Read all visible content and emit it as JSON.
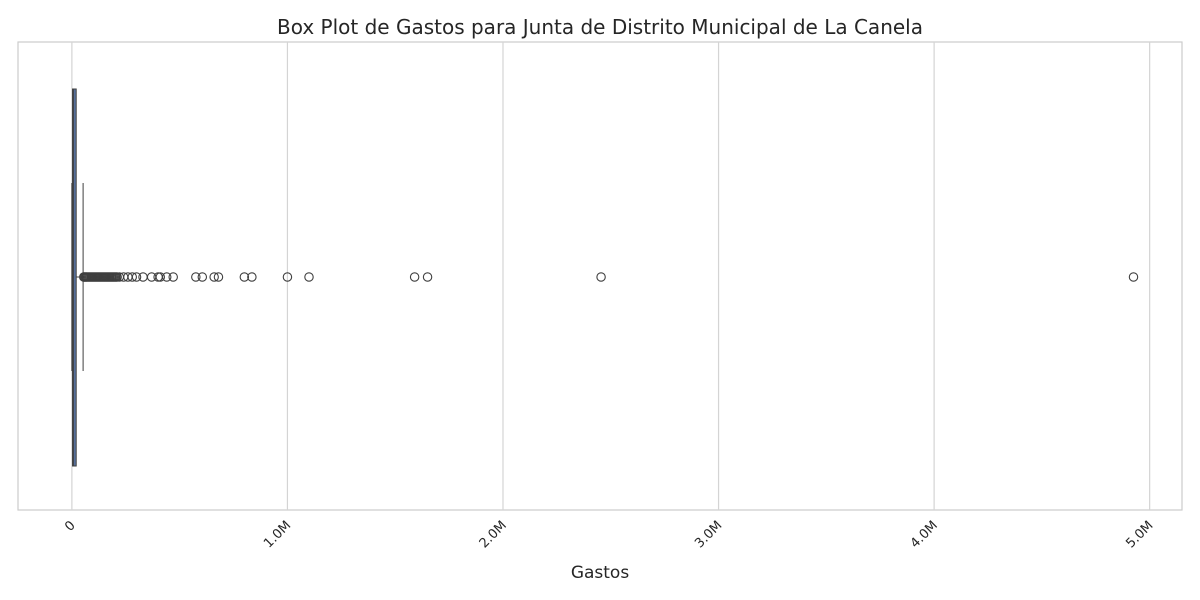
{
  "chart_data": {
    "type": "box",
    "title": "Box Plot de Gastos para Junta de Distrito Municipal de La Canela",
    "xlabel": "Gastos",
    "ylabel": "",
    "xlim": [
      -250000,
      5150000
    ],
    "x_ticks": [
      {
        "value": 0,
        "label": "0"
      },
      {
        "value": 1000000,
        "label": "1.0M"
      },
      {
        "value": 2000000,
        "label": "2.0M"
      },
      {
        "value": 3000000,
        "label": "3.0M"
      },
      {
        "value": 4000000,
        "label": "4.0M"
      },
      {
        "value": 5000000,
        "label": "5.0M"
      }
    ],
    "grid": true,
    "tick_rotation_deg": 45,
    "box": {
      "whisker_low": 0,
      "q1": 3000,
      "median": 8000,
      "q3": 20000,
      "whisker_high": 52000
    },
    "outliers": [
      55000,
      58000,
      62000,
      66000,
      70000,
      75000,
      80000,
      85000,
      90000,
      95000,
      100000,
      105000,
      110000,
      115000,
      120000,
      125000,
      130000,
      135000,
      140000,
      145000,
      150000,
      155000,
      160000,
      165000,
      170000,
      175000,
      180000,
      185000,
      190000,
      195000,
      200000,
      205000,
      210000,
      220000,
      240000,
      260000,
      280000,
      300000,
      330000,
      370000,
      400000,
      410000,
      440000,
      470000,
      575000,
      605000,
      660000,
      680000,
      800000,
      835000,
      1000000,
      1100000,
      1590000,
      1650000,
      2455000,
      4925000
    ],
    "colors": {
      "box_fill": "#5975a4",
      "box_edge": "#3f3f3f",
      "whisker": "#3f3f3f",
      "outlier_edge": "#3f3f3f",
      "grid": "#d4d4d4",
      "frame": "#cccccc"
    }
  }
}
